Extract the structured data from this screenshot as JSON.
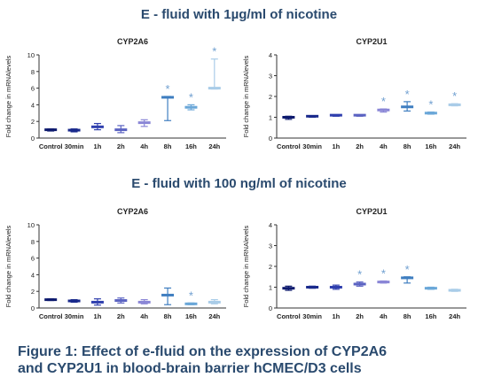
{
  "titles": {
    "top": "E - fluid with 1µg/ml of nicotine",
    "bottom": "E - fluid with 100 ng/ml of nicotine"
  },
  "caption": {
    "line1": "Figure 1: Effect of e-fluid on the expression of CYP2A6",
    "line2": "and CYP2U1 in blood-brain barrier hCMEC/D3 cells"
  },
  "colors": [
    "#0d1a6e",
    "#1a2a8c",
    "#2f3fae",
    "#5b63c2",
    "#8a86d6",
    "#3f7ec0",
    "#6aa7d8",
    "#a9cce8"
  ],
  "significance_marker": "*",
  "chart_data": [
    {
      "type": "scatter",
      "title": "CYP2A6",
      "ylabel": "Fold change in mRNAlevels",
      "xlabel": "",
      "categories": [
        "Control",
        "30min",
        "1h",
        "2h",
        "4h",
        "8h",
        "16h",
        "24h"
      ],
      "ylim": [
        0,
        10
      ],
      "yticks": [
        0,
        2,
        4,
        6,
        8,
        10
      ],
      "mean": [
        1.0,
        0.95,
        1.35,
        1.0,
        1.85,
        4.9,
        3.7,
        6.0
      ],
      "err_low": [
        0.85,
        0.75,
        1.0,
        0.65,
        1.4,
        2.1,
        3.4,
        5.9
      ],
      "err_high": [
        1.1,
        1.1,
        1.75,
        1.5,
        2.2,
        5.0,
        4.0,
        9.5
      ],
      "significant": [
        false,
        false,
        false,
        false,
        false,
        true,
        true,
        true
      ]
    },
    {
      "type": "scatter",
      "title": "CYP2U1",
      "ylabel": "Fold change in mRNAlevels",
      "xlabel": "",
      "categories": [
        "Control",
        "30min",
        "1h",
        "2h",
        "4h",
        "8h",
        "16h",
        "24h"
      ],
      "ylim": [
        0,
        4
      ],
      "yticks": [
        0,
        1,
        2,
        3,
        4
      ],
      "mean": [
        1.0,
        1.05,
        1.1,
        1.1,
        1.35,
        1.5,
        1.2,
        1.6
      ],
      "err_low": [
        0.9,
        1.0,
        1.05,
        1.05,
        1.25,
        1.3,
        1.15,
        1.55
      ],
      "err_high": [
        1.05,
        1.08,
        1.12,
        1.12,
        1.4,
        1.75,
        1.25,
        1.65
      ],
      "significant": [
        false,
        false,
        false,
        false,
        true,
        true,
        true,
        true
      ]
    },
    {
      "type": "scatter",
      "title": "CYP2A6",
      "ylabel": "Fold change in mRNAlevels",
      "xlabel": "",
      "categories": [
        "Control",
        "30min",
        "1h",
        "2h",
        "4h",
        "8h",
        "16h",
        "24h"
      ],
      "ylim": [
        0,
        10
      ],
      "yticks": [
        0,
        2,
        4,
        6,
        8,
        10
      ],
      "mean": [
        1.0,
        0.85,
        0.7,
        0.9,
        0.7,
        1.55,
        0.5,
        0.7
      ],
      "err_low": [
        0.9,
        0.7,
        0.35,
        0.6,
        0.5,
        0.4,
        0.4,
        0.5
      ],
      "err_high": [
        1.1,
        1.0,
        1.1,
        1.2,
        1.0,
        2.4,
        0.6,
        1.0
      ],
      "significant": [
        false,
        false,
        false,
        false,
        false,
        false,
        true,
        false
      ]
    },
    {
      "type": "scatter",
      "title": "CYP2U1",
      "ylabel": "Fold change in mRNAlevels",
      "xlabel": "",
      "categories": [
        "Control",
        "30min",
        "1h",
        "2h",
        "4h",
        "8h",
        "16h",
        "24h"
      ],
      "ylim": [
        0,
        4
      ],
      "yticks": [
        0,
        1,
        2,
        3,
        4
      ],
      "mean": [
        0.95,
        1.0,
        1.0,
        1.15,
        1.25,
        1.45,
        0.95,
        0.85
      ],
      "err_low": [
        0.85,
        0.95,
        0.9,
        1.05,
        1.2,
        1.2,
        0.9,
        0.8
      ],
      "err_high": [
        1.05,
        1.05,
        1.1,
        1.25,
        1.3,
        1.5,
        1.0,
        0.9
      ],
      "significant": [
        false,
        false,
        false,
        true,
        true,
        true,
        false,
        false
      ]
    }
  ]
}
